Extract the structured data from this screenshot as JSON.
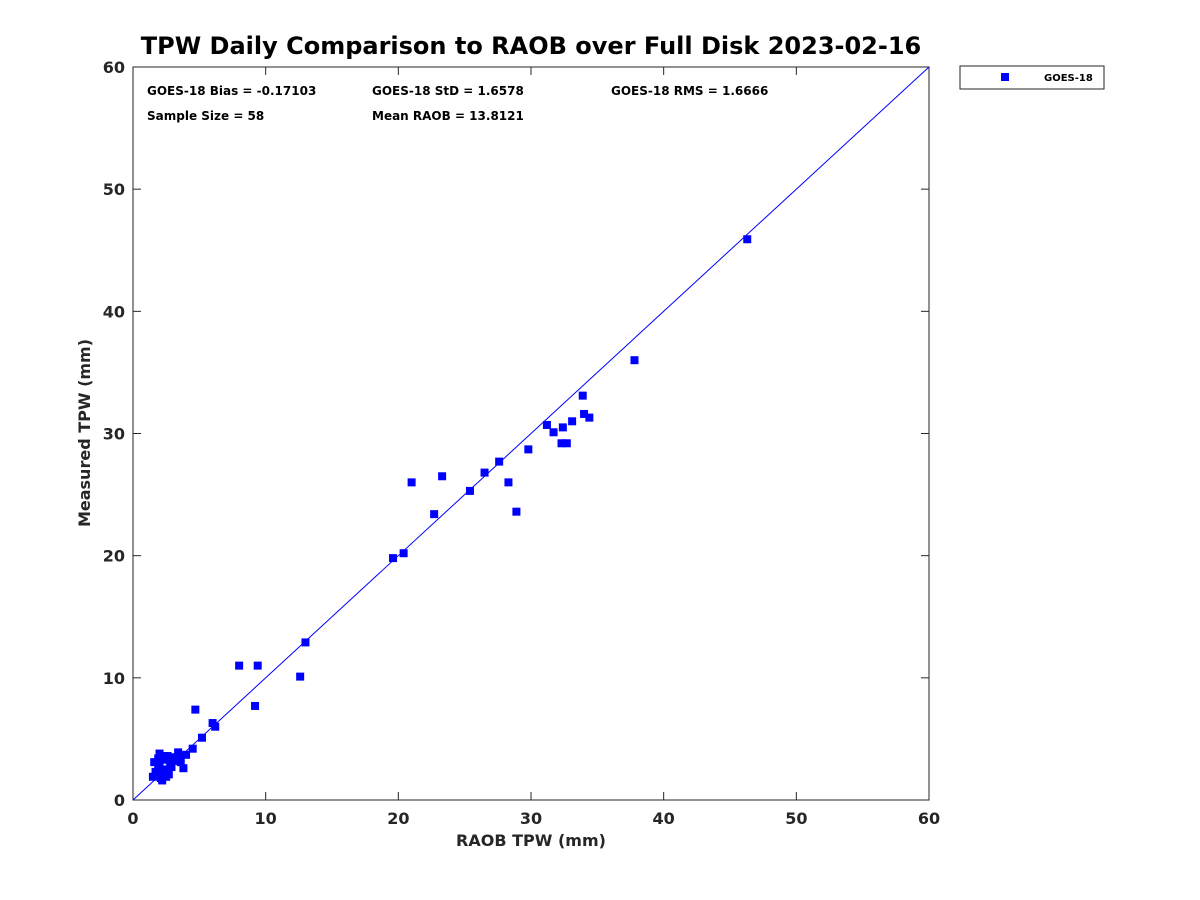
{
  "chart_data": {
    "type": "scatter",
    "title": "TPW Daily Comparison to RAOB over Full Disk 2023-02-16",
    "xlabel": "RAOB TPW (mm)",
    "ylabel": "Measured TPW (mm)",
    "xlim": [
      0,
      60
    ],
    "ylim": [
      0,
      60
    ],
    "xticks": [
      0,
      10,
      20,
      30,
      40,
      50,
      60
    ],
    "yticks": [
      0,
      10,
      20,
      30,
      40,
      50,
      60
    ],
    "xtick_labels": [
      "0",
      "10",
      "20",
      "30",
      "40",
      "50",
      "60"
    ],
    "ytick_labels": [
      "0",
      "10",
      "20",
      "30",
      "40",
      "50",
      "60"
    ],
    "grid": false,
    "legend_position": "outside-top-right",
    "reference_line": {
      "type": "one-to-one",
      "from": [
        0,
        0
      ],
      "to": [
        60,
        60
      ],
      "color": "#0000ff"
    },
    "stats": {
      "bias": "GOES-18 Bias = -0.17103",
      "std": "GOES-18 StD = 1.6578",
      "rms": "GOES-18 RMS = 1.6666",
      "sample_size": "Sample Size = 58",
      "mean_raob": "Mean RAOB = 13.8121"
    },
    "series": [
      {
        "name": "GOES-18",
        "color": "#0000ff",
        "marker": "square",
        "points": [
          [
            1.5,
            1.9
          ],
          [
            1.6,
            3.1
          ],
          [
            1.8,
            2.1
          ],
          [
            1.9,
            3.4
          ],
          [
            2.0,
            2.9
          ],
          [
            2.1,
            1.8
          ],
          [
            2.2,
            3.5
          ],
          [
            2.3,
            2.3
          ],
          [
            2.4,
            3.3
          ],
          [
            2.5,
            2.5
          ],
          [
            2.6,
            3.6
          ],
          [
            2.8,
            3.0
          ],
          [
            3.0,
            3.5
          ],
          [
            3.2,
            3.2
          ],
          [
            2.2,
            1.6
          ],
          [
            1.9,
            2.6
          ],
          [
            2.0,
            3.8
          ],
          [
            2.7,
            2.1
          ],
          [
            3.4,
            3.9
          ],
          [
            3.8,
            2.6
          ],
          [
            4.0,
            3.7
          ],
          [
            4.5,
            4.2
          ],
          [
            4.7,
            7.4
          ],
          [
            5.2,
            5.1
          ],
          [
            6.0,
            6.3
          ],
          [
            6.2,
            6.0
          ],
          [
            8.0,
            11.0
          ],
          [
            9.2,
            7.7
          ],
          [
            9.4,
            11.0
          ],
          [
            12.6,
            10.1
          ],
          [
            13.0,
            12.9
          ],
          [
            19.6,
            19.8
          ],
          [
            20.4,
            20.2
          ],
          [
            21.0,
            26.0
          ],
          [
            22.7,
            23.4
          ],
          [
            23.3,
            26.5
          ],
          [
            25.4,
            25.3
          ],
          [
            26.5,
            26.8
          ],
          [
            27.6,
            27.7
          ],
          [
            28.3,
            26.0
          ],
          [
            28.9,
            23.6
          ],
          [
            29.8,
            28.7
          ],
          [
            31.2,
            30.7
          ],
          [
            31.7,
            30.1
          ],
          [
            32.3,
            29.2
          ],
          [
            32.4,
            30.5
          ],
          [
            32.7,
            29.2
          ],
          [
            33.1,
            31.0
          ],
          [
            33.9,
            33.1
          ],
          [
            34.0,
            31.6
          ],
          [
            34.4,
            31.3
          ],
          [
            37.8,
            36.0
          ],
          [
            46.3,
            45.9
          ],
          [
            3.5,
            3.4
          ],
          [
            2.9,
            2.7
          ],
          [
            1.7,
            2.3
          ],
          [
            2.5,
            1.9
          ],
          [
            3.6,
            3.1
          ]
        ]
      }
    ]
  }
}
